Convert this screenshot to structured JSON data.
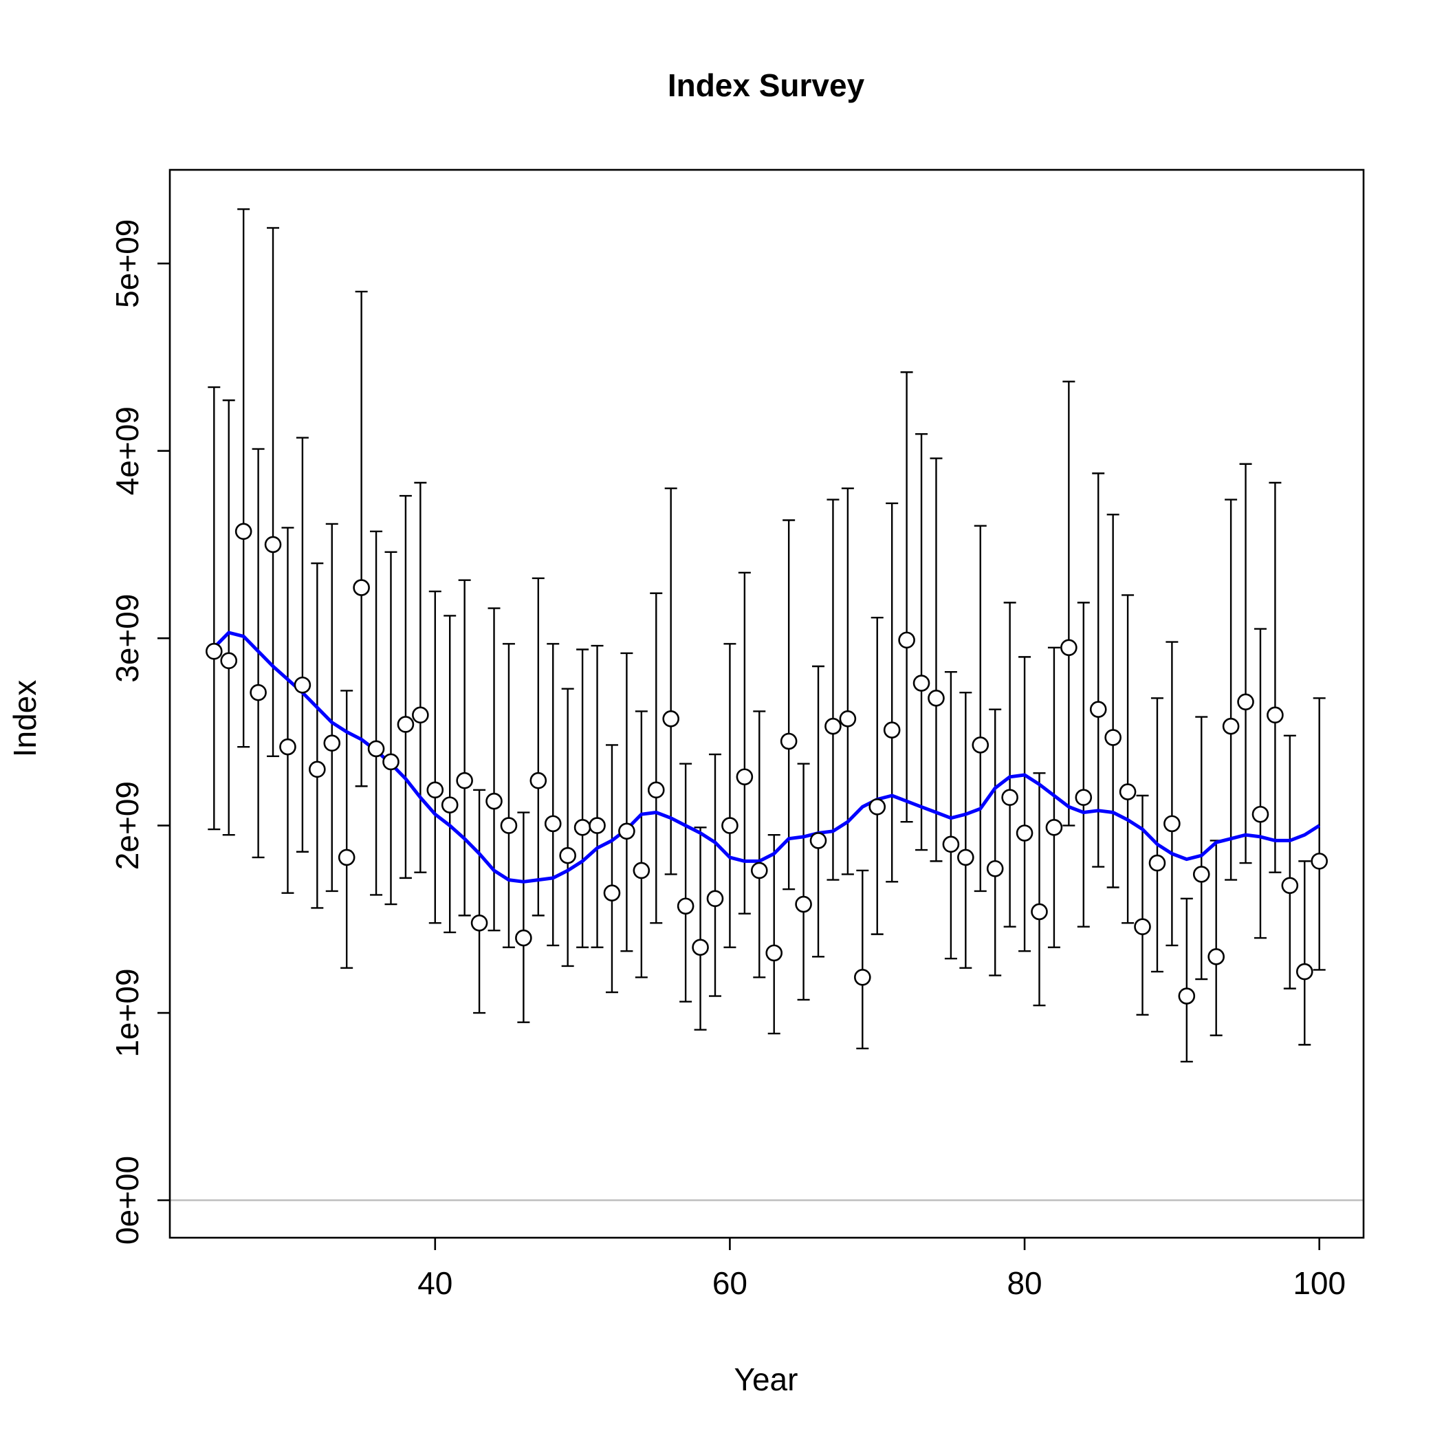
{
  "chart_data": {
    "type": "scatter",
    "title": "Index Survey",
    "xlabel": "Year",
    "ylabel": "Index",
    "xlim": [
      22,
      103
    ],
    "ylim": [
      -200000000,
      5500000000
    ],
    "xticks": [
      40,
      60,
      80,
      100
    ],
    "xtick_labels": [
      "40",
      "60",
      "80",
      "100"
    ],
    "yticks": [
      0,
      1000000000,
      2000000000,
      3000000000,
      4000000000,
      5000000000
    ],
    "ytick_labels": [
      "0e+00",
      "1e+09",
      "2e+09",
      "3e+09",
      "4e+09",
      "5e+09"
    ],
    "grid": false,
    "reference_line": 0,
    "colors": {
      "fit_line": "#0000ff",
      "reference_line": "#bebebe",
      "points": "#000000"
    },
    "series": [
      {
        "type": "points_with_error_bars",
        "x": [
          25,
          26,
          27,
          28,
          29,
          30,
          31,
          32,
          33,
          34,
          35,
          36,
          37,
          38,
          39,
          40,
          41,
          42,
          43,
          44,
          45,
          46,
          47,
          48,
          49,
          50,
          51,
          52,
          53,
          54,
          55,
          56,
          57,
          58,
          59,
          60,
          61,
          62,
          63,
          64,
          65,
          66,
          67,
          68,
          69,
          70,
          71,
          72,
          73,
          74,
          75,
          76,
          77,
          78,
          79,
          80,
          81,
          82,
          83,
          84,
          85,
          86,
          87,
          88,
          89,
          90,
          91,
          92,
          93,
          94,
          95,
          96,
          97,
          98,
          99,
          100
        ],
        "y": [
          2930000000.0,
          2880000000.0,
          3570000000.0,
          2710000000.0,
          3500000000.0,
          2420000000.0,
          2750000000.0,
          2300000000.0,
          2440000000.0,
          1830000000.0,
          3270000000.0,
          2410000000.0,
          2340000000.0,
          2540000000.0,
          2590000000.0,
          2190000000.0,
          2110000000.0,
          2240000000.0,
          1480000000.0,
          2130000000.0,
          2000000000.0,
          1400000000.0,
          2240000000.0,
          2010000000.0,
          1840000000.0,
          1990000000.0,
          2000000000.0,
          1640000000.0,
          1970000000.0,
          1760000000.0,
          2190000000.0,
          2570000000.0,
          1570000000.0,
          1350000000.0,
          1610000000.0,
          2000000000.0,
          2260000000.0,
          1760000000.0,
          1320000000.0,
          2450000000.0,
          1580000000.0,
          1920000000.0,
          2530000000.0,
          2570000000.0,
          1190000000.0,
          2100000000.0,
          2510000000.0,
          2990000000.0,
          2760000000.0,
          2680000000.0,
          1900000000.0,
          1830000000.0,
          2430000000.0,
          1770000000.0,
          2150000000.0,
          1960000000.0,
          1540000000.0,
          1990000000.0,
          2950000000.0,
          2150000000.0,
          2620000000.0,
          2470000000.0,
          2180000000.0,
          1460000000.0,
          1800000000.0,
          2010000000.0,
          1090000000.0,
          1740000000.0,
          1300000000.0,
          2530000000.0,
          2660000000.0,
          2060000000.0,
          2590000000.0,
          1680000000.0,
          1220000000.0,
          1810000000.0
        ],
        "lower": [
          1980000000.0,
          1950000000.0,
          2420000000.0,
          1830000000.0,
          2370000000.0,
          1640000000.0,
          1860000000.0,
          1560000000.0,
          1650000000.0,
          1240000000.0,
          2210000000.0,
          1630000000.0,
          1580000000.0,
          1720000000.0,
          1750000000.0,
          1480000000.0,
          1430000000.0,
          1520000000.0,
          1000000000.0,
          1440000000.0,
          1350000000.0,
          950000000.0,
          1520000000.0,
          1360000000.0,
          1250000000.0,
          1350000000.0,
          1350000000.0,
          1110000000.0,
          1330000000.0,
          1190000000.0,
          1480000000.0,
          1740000000.0,
          1060000000.0,
          910000000.0,
          1090000000.0,
          1350000000.0,
          1530000000.0,
          1190000000.0,
          890000000.0,
          1660000000.0,
          1070000000.0,
          1300000000.0,
          1710000000.0,
          1740000000.0,
          810000000.0,
          1420000000.0,
          1700000000.0,
          2020000000.0,
          1870000000.0,
          1810000000.0,
          1290000000.0,
          1240000000.0,
          1650000000.0,
          1200000000.0,
          1460000000.0,
          1330000000.0,
          1040000000.0,
          1350000000.0,
          2000000000.0,
          1460000000.0,
          1780000000.0,
          1670000000.0,
          1480000000.0,
          990000000.0,
          1220000000.0,
          1360000000.0,
          740000000.0,
          1180000000.0,
          880000000.0,
          1710000000.0,
          1800000000.0,
          1400000000.0,
          1750000000.0,
          1130000000.0,
          830000000.0,
          1230000000.0
        ],
        "upper": [
          4340000000.0,
          4270000000.0,
          5290000000.0,
          4010000000.0,
          5190000000.0,
          3590000000.0,
          4070000000.0,
          3400000000.0,
          3610000000.0,
          2720000000.0,
          4850000000.0,
          3570000000.0,
          3460000000.0,
          3760000000.0,
          3830000000.0,
          3250000000.0,
          3120000000.0,
          3310000000.0,
          2190000000.0,
          3160000000.0,
          2970000000.0,
          2070000000.0,
          3320000000.0,
          2970000000.0,
          2730000000.0,
          2940000000.0,
          2960000000.0,
          2430000000.0,
          2920000000.0,
          2610000000.0,
          3240000000.0,
          3800000000.0,
          2330000000.0,
          1990000000.0,
          2380000000.0,
          2970000000.0,
          3350000000.0,
          2610000000.0,
          1950000000.0,
          3630000000.0,
          2330000000.0,
          2850000000.0,
          3740000000.0,
          3800000000.0,
          1760000000.0,
          3110000000.0,
          3720000000.0,
          4420000000.0,
          4090000000.0,
          3960000000.0,
          2820000000.0,
          2710000000.0,
          3600000000.0,
          2620000000.0,
          3190000000.0,
          2900000000.0,
          2280000000.0,
          2950000000.0,
          4370000000.0,
          3190000000.0,
          3880000000.0,
          3660000000.0,
          3230000000.0,
          2160000000.0,
          2680000000.0,
          2980000000.0,
          1610000000.0,
          2580000000.0,
          1920000000.0,
          3740000000.0,
          3930000000.0,
          3050000000.0,
          3830000000.0,
          2480000000.0,
          1810000000.0,
          2680000000.0
        ]
      },
      {
        "type": "line",
        "x": [
          25,
          26,
          27,
          28,
          29,
          30,
          31,
          32,
          33,
          34,
          35,
          36,
          37,
          38,
          39,
          40,
          41,
          42,
          43,
          44,
          45,
          46,
          47,
          48,
          49,
          50,
          51,
          52,
          53,
          54,
          55,
          56,
          57,
          58,
          59,
          60,
          61,
          62,
          63,
          64,
          65,
          66,
          67,
          68,
          69,
          70,
          71,
          72,
          73,
          74,
          75,
          76,
          77,
          78,
          79,
          80,
          81,
          82,
          83,
          84,
          85,
          86,
          87,
          88,
          89,
          90,
          91,
          92,
          93,
          94,
          95,
          96,
          97,
          98,
          99,
          100
        ],
        "y": [
          2950000000.0,
          3030000000.0,
          3010000000.0,
          2930000000.0,
          2850000000.0,
          2780000000.0,
          2710000000.0,
          2630000000.0,
          2550000000.0,
          2500000000.0,
          2460000000.0,
          2400000000.0,
          2330000000.0,
          2250000000.0,
          2150000000.0,
          2060000000.0,
          2000000000.0,
          1930000000.0,
          1850000000.0,
          1760000000.0,
          1710000000.0,
          1700000000.0,
          1710000000.0,
          1720000000.0,
          1760000000.0,
          1810000000.0,
          1880000000.0,
          1920000000.0,
          1980000000.0,
          2060000000.0,
          2070000000.0,
          2040000000.0,
          2000000000.0,
          1960000000.0,
          1910000000.0,
          1830000000.0,
          1810000000.0,
          1810000000.0,
          1850000000.0,
          1930000000.0,
          1940000000.0,
          1960000000.0,
          1970000000.0,
          2020000000.0,
          2100000000.0,
          2140000000.0,
          2160000000.0,
          2130000000.0,
          2100000000.0,
          2070000000.0,
          2040000000.0,
          2060000000.0,
          2090000000.0,
          2200000000.0,
          2260000000.0,
          2270000000.0,
          2220000000.0,
          2160000000.0,
          2100000000.0,
          2070000000.0,
          2080000000.0,
          2070000000.0,
          2030000000.0,
          1980000000.0,
          1900000000.0,
          1850000000.0,
          1820000000.0,
          1840000000.0,
          1910000000.0,
          1930000000.0,
          1950000000.0,
          1940000000.0,
          1920000000.0,
          1920000000.0,
          1950000000.0,
          2000000000.0
        ]
      }
    ]
  }
}
